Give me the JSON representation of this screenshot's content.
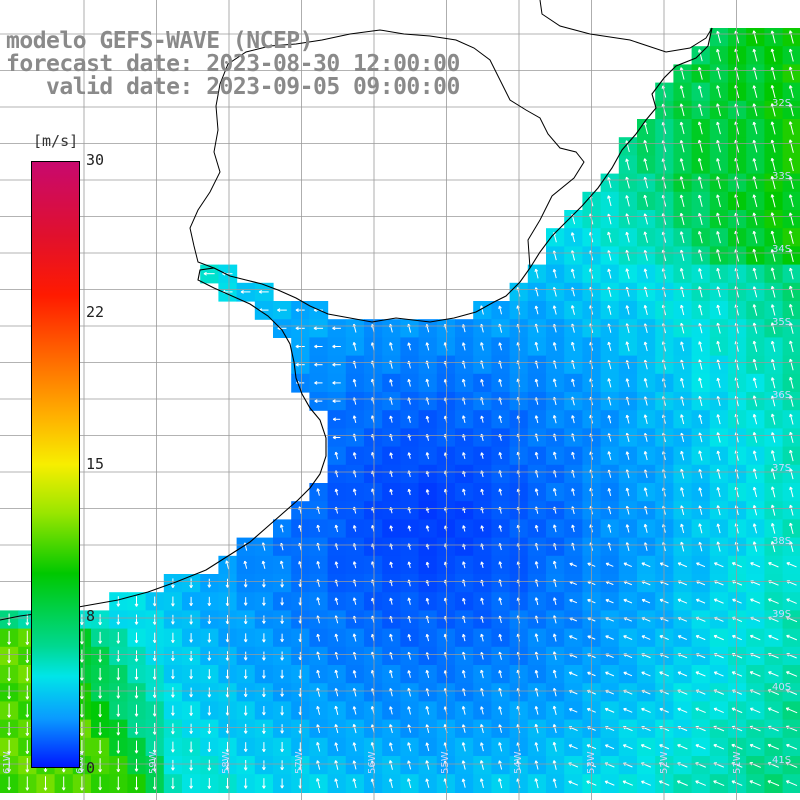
{
  "titles": {
    "line1": "modelo GEFS-WAVE (NCEP)",
    "line2": "forecast date: 2023-08-30 12:00:00",
    "line3": "   valid date: 2023-09-05 09:00:00"
  },
  "colorbar": {
    "unit": "[m/s]",
    "ticks": [
      {
        "label": "30",
        "value": 30
      },
      {
        "label": "22",
        "value": 22
      },
      {
        "label": "15",
        "value": 15
      },
      {
        "label": "8",
        "value": 8
      },
      {
        "label": "0",
        "value": 0
      }
    ],
    "min": 0,
    "max": 30
  },
  "latitude_labels": [
    "32S",
    "33S",
    "34S",
    "35S",
    "36S",
    "37S",
    "38S",
    "39S",
    "40S",
    "41S"
  ],
  "longitude_labels": [
    "61W",
    "60W",
    "59W",
    "58W",
    "57W",
    "56W",
    "55W",
    "54W",
    "53W",
    "52W",
    "51W"
  ],
  "colors": {
    "land": "#ffffff",
    "coast": "#000000",
    "grid": "#9a9a9a",
    "arrow": "#ffffff",
    "title": "#8a8a8a"
  },
  "legend_position": "left"
}
